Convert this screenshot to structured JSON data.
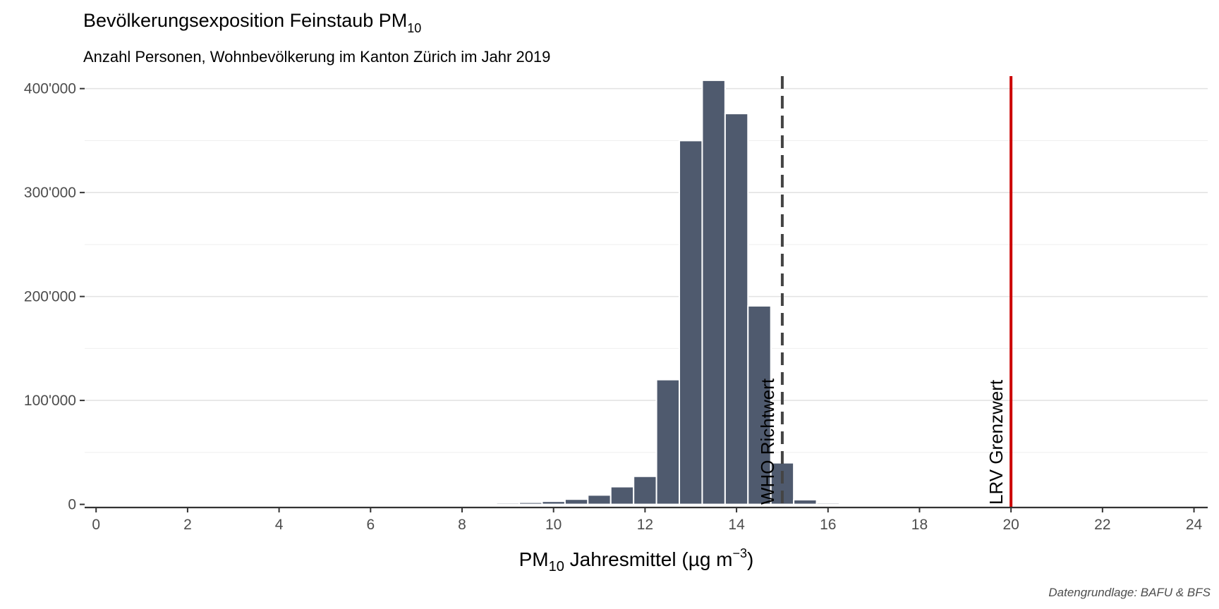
{
  "chart_data": {
    "type": "bar",
    "title": {
      "main": "Bevölkerungsexposition Feinstaub PM",
      "sub": "10"
    },
    "subtitle": "Anzahl Personen, Wohnbevölkerung im Kanton Zürich im Jahr 2019",
    "xlabel": {
      "pre": "PM",
      "sub": "10",
      "mid": " Jahresmittel (µg m",
      "sup": "−3",
      "post": ")"
    },
    "ylabel": "",
    "caption": "Datengrundlage: BAFU & BFS",
    "xlim": [
      -0.25,
      24.3
    ],
    "ylim": [
      -3000,
      412000
    ],
    "bin_width": 0.5,
    "x_ticks": [
      0,
      2,
      4,
      6,
      8,
      10,
      12,
      14,
      16,
      18,
      20,
      22,
      24
    ],
    "y_ticks": [
      0,
      100000,
      200000,
      300000,
      400000
    ],
    "y_tick_labels": [
      "0",
      "100'000",
      "200'000",
      "300'000",
      "400'000"
    ],
    "x": [
      9.0,
      9.5,
      10.0,
      10.5,
      11.0,
      11.5,
      12.0,
      12.5,
      13.0,
      13.5,
      14.0,
      14.5,
      15.0,
      15.5,
      16.0
    ],
    "values": [
      1500,
      2000,
      3000,
      5000,
      9000,
      17000,
      27000,
      120000,
      350000,
      408000,
      376000,
      191000,
      40000,
      4500,
      1500
    ],
    "bar_color": "#4f5a6e",
    "grid": true,
    "reference_lines": [
      {
        "label": "WHO Richtwert",
        "x": 15,
        "color": "#444444",
        "style": "dashed"
      },
      {
        "label": "LRV Grenzwert",
        "x": 20,
        "color": "#cc0000",
        "style": "solid"
      }
    ]
  }
}
